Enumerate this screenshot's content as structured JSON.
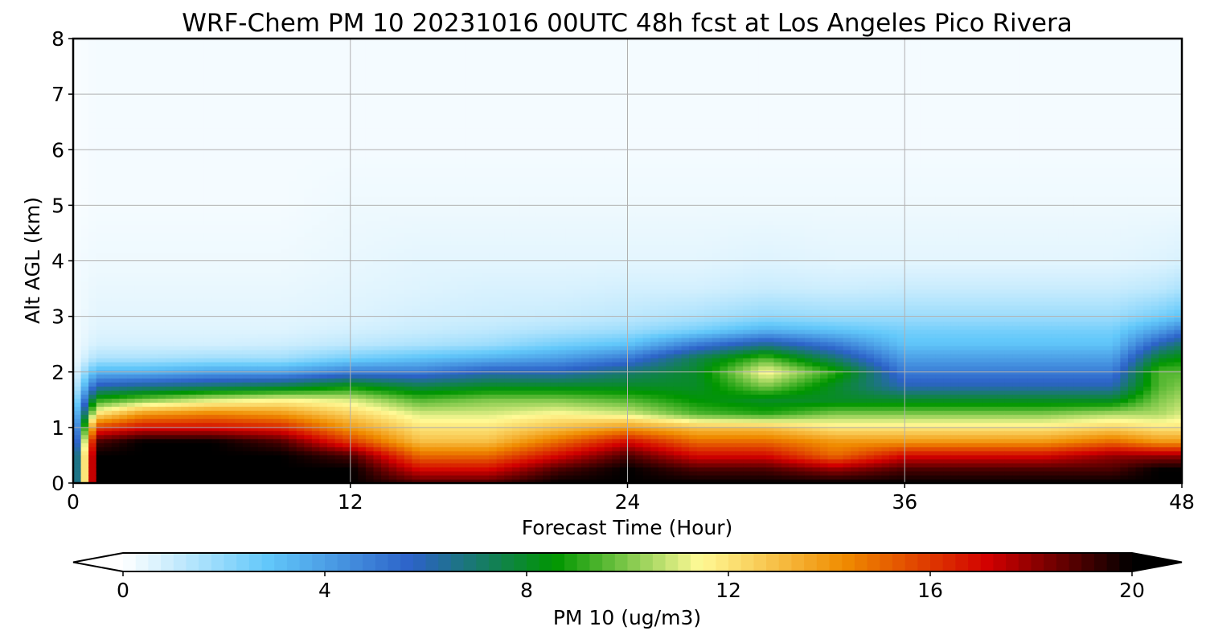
{
  "chart_data": {
    "type": "heatmap",
    "title": "WRF-Chem PM 10  20231016 00UTC 48h fcst at Los Angeles Pico Rivera",
    "xlabel": "Forecast Time (Hour)",
    "ylabel": "Alt AGL (km)",
    "xlim": [
      0,
      48
    ],
    "ylim": [
      0,
      8
    ],
    "x_ticks": [
      "0",
      "12",
      "24",
      "36",
      "48"
    ],
    "y_ticks": [
      "0",
      "1",
      "2",
      "3",
      "4",
      "5",
      "6",
      "7",
      "8"
    ],
    "grid": true,
    "colorbar": {
      "label": "PM 10  (ug/m3)",
      "ticks": [
        "0",
        "4",
        "8",
        "12",
        "16",
        "20"
      ],
      "range": [
        0,
        20
      ],
      "extend": "both",
      "orientation": "horizontal",
      "colors": [
        "#ffffff",
        "#62c8fa",
        "#2c62c8",
        "#009600",
        "#fffa96",
        "#f08c00",
        "#d20000",
        "#000000"
      ]
    },
    "time_hours": [
      0,
      1,
      3,
      6,
      9,
      12,
      15,
      18,
      21,
      24,
      27,
      30,
      33,
      36,
      39,
      42,
      45,
      47,
      48
    ],
    "altitude_km": [
      0,
      0.25,
      0.5,
      0.75,
      1.0,
      1.25,
      1.5,
      1.75,
      2.0,
      2.25,
      2.5,
      2.75,
      3.0,
      3.5,
      4.0,
      5.0,
      6.0,
      7.0,
      8.0
    ],
    "pm10_ug_m3": [
      [
        4,
        4,
        4,
        3,
        2.5,
        2,
        1.2,
        0.6,
        0.3,
        0.2,
        0.2,
        0.2,
        0.2,
        0.2,
        0.2,
        0.1,
        0.1,
        0.1,
        0.1
      ],
      [
        20,
        20,
        20,
        19,
        16,
        12,
        9,
        6,
        3.5,
        1.5,
        0.8,
        0.6,
        0.5,
        0.4,
        0.3,
        0.2,
        0.2,
        0.2,
        0.2
      ],
      [
        20,
        20,
        20,
        20,
        17,
        14,
        10,
        6.5,
        3.5,
        1.5,
        0.8,
        0.6,
        0.5,
        0.4,
        0.3,
        0.2,
        0.2,
        0.2,
        0.2
      ],
      [
        20,
        20,
        20,
        20,
        17,
        14.5,
        11,
        7,
        4,
        1.7,
        0.8,
        0.6,
        0.5,
        0.4,
        0.3,
        0.2,
        0.2,
        0.2,
        0.2
      ],
      [
        20,
        20,
        20,
        19,
        16.5,
        14,
        11.5,
        7.5,
        4,
        1.7,
        0.9,
        0.6,
        0.5,
        0.4,
        0.3,
        0.2,
        0.2,
        0.2,
        0.2
      ],
      [
        20,
        20,
        19,
        16,
        14,
        12.5,
        11,
        8.5,
        5,
        2.5,
        1.2,
        0.8,
        0.6,
        0.5,
        0.4,
        0.3,
        0.2,
        0.2,
        0.2
      ],
      [
        19,
        17,
        15,
        13,
        12,
        11,
        9.5,
        7.5,
        5,
        3,
        1.5,
        1,
        0.8,
        0.6,
        0.5,
        0.3,
        0.2,
        0.2,
        0.2
      ],
      [
        19,
        17,
        15,
        13,
        12,
        11,
        10,
        8,
        6,
        3.5,
        1.8,
        1.2,
        0.9,
        0.7,
        0.5,
        0.3,
        0.2,
        0.2,
        0.2
      ],
      [
        20,
        19,
        17,
        15,
        13,
        11.5,
        10,
        8,
        6,
        4,
        2.5,
        1.5,
        1,
        0.7,
        0.5,
        0.3,
        0.2,
        0.2,
        0.2
      ],
      [
        20,
        20,
        19,
        17,
        14,
        11,
        9.5,
        8,
        7,
        5,
        3,
        1.8,
        1.2,
        0.8,
        0.5,
        0.3,
        0.2,
        0.2,
        0.2
      ],
      [
        20,
        19,
        17,
        15,
        13,
        9.5,
        8.5,
        8,
        8,
        7.5,
        5,
        2.5,
        1.5,
        0.8,
        0.5,
        0.3,
        0.2,
        0.2,
        0.2
      ],
      [
        20,
        19,
        17,
        15,
        13,
        9,
        8,
        10,
        11.5,
        9.5,
        6.5,
        3.5,
        2,
        1,
        0.6,
        0.3,
        0.2,
        0.2,
        0.2
      ],
      [
        20,
        18,
        15,
        14,
        12,
        10,
        8,
        8,
        9,
        7,
        5,
        3,
        1.8,
        0.9,
        0.5,
        0.3,
        0.2,
        0.2,
        0.2
      ],
      [
        20,
        19,
        17,
        14,
        12,
        10,
        8,
        6,
        5,
        4,
        3,
        2.5,
        1.8,
        1,
        0.5,
        0.3,
        0.2,
        0.2,
        0.2
      ],
      [
        20,
        19,
        17,
        14,
        12,
        10,
        8,
        6,
        5,
        4,
        3,
        2.5,
        1.8,
        1,
        0.5,
        0.3,
        0.2,
        0.2,
        0.2
      ],
      [
        20,
        19,
        17,
        14,
        12,
        10,
        8,
        6,
        5,
        4,
        3,
        2.5,
        1.8,
        1,
        0.5,
        0.3,
        0.2,
        0.2,
        0.2
      ],
      [
        20,
        19,
        18,
        15,
        12.5,
        10.5,
        8,
        6,
        5,
        4,
        3,
        2.5,
        1.8,
        1,
        0.5,
        0.3,
        0.2,
        0.2,
        0.2
      ],
      [
        20,
        20,
        18,
        14,
        12,
        10.5,
        10,
        9.5,
        9.5,
        8,
        6,
        4,
        2.5,
        1.2,
        0.6,
        0.3,
        0.2,
        0.2,
        0.2
      ],
      [
        20,
        20,
        18,
        14,
        12,
        11,
        10.5,
        10,
        9.5,
        8.5,
        7,
        5,
        3,
        1.5,
        0.7,
        0.3,
        0.2,
        0.2,
        0.2
      ]
    ]
  }
}
